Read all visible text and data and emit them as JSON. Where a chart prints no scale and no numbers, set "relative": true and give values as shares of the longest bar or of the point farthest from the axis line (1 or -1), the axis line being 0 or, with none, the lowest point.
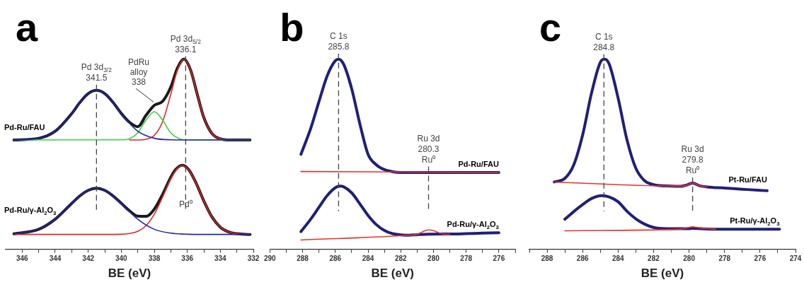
{
  "chart_data": [
    {
      "type": "line",
      "title": "a",
      "xlabel": "BE (eV)",
      "relative": true,
      "grid": false,
      "marker": "none",
      "xlim": [
        347,
        332
      ],
      "xticks": [
        346,
        {
          "value": 345,
          "label": null
        },
        344,
        {
          "value": 343,
          "label": null
        },
        342,
        {
          "value": 341,
          "label": null
        },
        340,
        {
          "value": 339,
          "label": null
        },
        338,
        {
          "value": 337,
          "label": null
        },
        336,
        {
          "value": 335,
          "label": null
        },
        334,
        {
          "value": 333,
          "label": null
        },
        332
      ],
      "ref_lines": [
        {
          "axis": "x",
          "value": 341.5,
          "label": "Pd 3d$_{3/2}$\n341.5"
        },
        {
          "axis": "x",
          "value": 336.1,
          "label": "Pd 3d$_{5/2}$\n336.1"
        }
      ],
      "annotations": [
        {
          "text": "PdRu\nalloy\n338",
          "x": 338,
          "y": 0.76
        },
        {
          "text": "Pd⁰",
          "x": 336.1,
          "y": 0.22
        }
      ],
      "series": [
        {
          "name": "Pd-Ru/FAU",
          "color": "#1a1a1a",
          "x": [
            346.5,
            345,
            344,
            343,
            342.5,
            342,
            341.5,
            341,
            340.5,
            340,
            339.5,
            339,
            338.5,
            338,
            337.5,
            337,
            336.6,
            336.2,
            335.8,
            335.4,
            335,
            334.5,
            334,
            333.5,
            332.2
          ],
          "values": [
            0.575,
            0.584,
            0.621,
            0.714,
            0.773,
            0.819,
            0.836,
            0.819,
            0.773,
            0.715,
            0.668,
            0.645,
            0.705,
            0.757,
            0.778,
            0.854,
            0.953,
            1.0,
            0.943,
            0.816,
            0.693,
            0.608,
            0.581,
            0.575,
            0.575
          ]
        },
        {
          "color": "#2323b0",
          "x": [
            346.5,
            345,
            344,
            343,
            342.5,
            342,
            341.5,
            341,
            340.5,
            340,
            339,
            338,
            337,
            336,
            332.2
          ],
          "values": [
            0.575,
            0.584,
            0.621,
            0.714,
            0.773,
            0.819,
            0.836,
            0.819,
            0.773,
            0.714,
            0.621,
            0.584,
            0.576,
            0.575,
            0.575
          ]
        },
        {
          "color": "#3ccf3c",
          "x": [
            346.5,
            340,
            339.5,
            339,
            338.5,
            338,
            337.5,
            337,
            336.5,
            336,
            332.2
          ],
          "values": [
            0.575,
            0.576,
            0.582,
            0.612,
            0.68,
            0.724,
            0.68,
            0.612,
            0.582,
            0.576,
            0.575
          ]
        },
        {
          "color": "#e02424",
          "x": [
            339.5,
            339,
            338.5,
            338,
            337.5,
            337,
            336.6,
            336.2,
            335.8,
            335.4,
            335,
            334.5,
            334,
            333.5,
            332.2
          ],
          "values": [
            0.575,
            0.575,
            0.579,
            0.599,
            0.67,
            0.816,
            0.943,
            0.998,
            0.943,
            0.816,
            0.693,
            0.608,
            0.581,
            0.575,
            0.575
          ]
        },
        {
          "name": "Pd-Ru/γ-Al$_{2}$O$_{3}$",
          "color": "#1a1a1a",
          "x": [
            346.5,
            345,
            344,
            343,
            342.5,
            342,
            341.5,
            341,
            340.5,
            340,
            339.5,
            339,
            338.5,
            338,
            337.5,
            337,
            336.7,
            336.3,
            335.9,
            335.5,
            335,
            334.5,
            334,
            333.5,
            333,
            332.2
          ],
          "values": [
            0.081,
            0.105,
            0.158,
            0.241,
            0.281,
            0.31,
            0.321,
            0.31,
            0.281,
            0.242,
            0.202,
            0.174,
            0.173,
            0.211,
            0.288,
            0.379,
            0.42,
            0.442,
            0.417,
            0.354,
            0.254,
            0.169,
            0.116,
            0.091,
            0.082,
            0.078
          ]
        },
        {
          "color": "#2323b0",
          "x": [
            346.5,
            345,
            344,
            343,
            342.5,
            342,
            341.5,
            341,
            340.5,
            340,
            339,
            338,
            337,
            336,
            335,
            332.2
          ],
          "values": [
            0.081,
            0.105,
            0.158,
            0.241,
            0.281,
            0.31,
            0.321,
            0.31,
            0.281,
            0.241,
            0.158,
            0.105,
            0.085,
            0.079,
            0.078,
            0.078
          ]
        },
        {
          "color": "#e02424",
          "x": [
            346.5,
            341,
            340,
            339.5,
            339,
            338.5,
            338,
            337.5,
            337,
            336.7,
            336.3,
            335.9,
            335.5,
            335,
            334.5,
            334,
            333.5,
            333,
            332.2
          ],
          "values": [
            0.078,
            0.078,
            0.079,
            0.083,
            0.094,
            0.124,
            0.184,
            0.274,
            0.372,
            0.416,
            0.44,
            0.416,
            0.354,
            0.254,
            0.169,
            0.116,
            0.091,
            0.082,
            0.078
          ]
        }
      ]
    },
    {
      "type": "line",
      "title": "b",
      "xlabel": "BE (eV)",
      "relative": true,
      "grid": false,
      "marker": "none",
      "xlim": [
        290,
        275
      ],
      "xticks": [
        290,
        {
          "value": 289,
          "label": null
        },
        288,
        {
          "value": 287,
          "label": null
        },
        286,
        {
          "value": 285,
          "label": null
        },
        284,
        {
          "value": 283,
          "label": null
        },
        282,
        {
          "value": 281,
          "label": null
        },
        280,
        {
          "value": 279,
          "label": null
        },
        278,
        {
          "value": 277,
          "label": null
        },
        276,
        {
          "value": 275,
          "label": null
        }
      ],
      "ref_lines": [
        {
          "axis": "x",
          "value": 285.8,
          "label": "C 1s\n285.8"
        },
        {
          "axis": "x",
          "value": 280.3,
          "label": "Ru 3d\n280.3\nRu⁰"
        }
      ],
      "series": [
        {
          "name": "Pd-Ru/FAU",
          "color": "#1f1f7a",
          "x": [
            288.1,
            287.5,
            287,
            286.5,
            286,
            285.8,
            285.5,
            285,
            284.5,
            284,
            283.5,
            283,
            282.5,
            282,
            280,
            278,
            276
          ],
          "values": [
            0.5,
            0.637,
            0.777,
            0.912,
            0.992,
            1.0,
            0.975,
            0.845,
            0.66,
            0.5,
            0.445,
            0.419,
            0.408,
            0.404,
            0.404,
            0.404,
            0.404
          ]
        },
        {
          "color": "#e8322a",
          "x": [
            288.1,
            276
          ],
          "values": [
            0.409,
            0.404
          ]
        },
        {
          "name": "Pd-Ru/γ-Al$_{2}$O$_{3}$",
          "color": "#1f1f7a",
          "x": [
            288.1,
            287.5,
            287,
            286.5,
            286,
            285.7,
            285.5,
            285,
            284.5,
            284,
            283.5,
            283,
            282.5,
            282,
            281.5,
            281,
            280.3,
            279.5,
            279,
            278,
            277,
            276
          ],
          "values": [
            0.093,
            0.159,
            0.221,
            0.282,
            0.324,
            0.332,
            0.329,
            0.297,
            0.239,
            0.178,
            0.13,
            0.099,
            0.082,
            0.076,
            0.074,
            0.077,
            0.079,
            0.08,
            0.08,
            0.082,
            0.085,
            0.087
          ]
        },
        {
          "color": "#e8322a",
          "x": [
            288.1,
            281.5,
            281,
            280.8,
            280.5,
            280.3,
            280,
            279.7,
            279.4,
            279
          ],
          "values": [
            0.049,
            0.074,
            0.078,
            0.086,
            0.098,
            0.102,
            0.098,
            0.088,
            0.08,
            0.079
          ]
        }
      ]
    },
    {
      "type": "line",
      "title": "c",
      "xlabel": "BE (eV)",
      "relative": true,
      "grid": false,
      "marker": "none",
      "xlim": [
        289,
        274
      ],
      "xticks": [
        {
          "value": 289,
          "label": null
        },
        288,
        {
          "value": 287,
          "label": null
        },
        286,
        {
          "value": 285,
          "label": null
        },
        284,
        {
          "value": 283,
          "label": null
        },
        282,
        {
          "value": 281,
          "label": null
        },
        280,
        {
          "value": 279,
          "label": null
        },
        278,
        {
          "value": 277,
          "label": null
        },
        276,
        {
          "value": 275,
          "label": null
        },
        274
      ],
      "ref_lines": [
        {
          "axis": "x",
          "value": 284.8,
          "label": "C 1s\n284.8"
        },
        {
          "axis": "x",
          "value": 279.8,
          "label": "Ru 3d\n279.8\nRu⁰"
        }
      ],
      "series": [
        {
          "name": "Pt-Ru/FAU",
          "color": "#1f1f7a",
          "x": [
            287.6,
            287,
            286.5,
            286,
            285.5,
            285,
            284.75,
            284.5,
            284,
            283.5,
            283,
            282.5,
            282,
            281,
            280.5,
            280.2,
            279.8,
            279.4,
            279,
            278,
            277,
            276,
            275.6
          ],
          "values": [
            0.354,
            0.373,
            0.444,
            0.601,
            0.821,
            0.984,
            1.0,
            0.974,
            0.796,
            0.576,
            0.426,
            0.36,
            0.34,
            0.332,
            0.331,
            0.336,
            0.348,
            0.334,
            0.328,
            0.322,
            0.316,
            0.31,
            0.308
          ]
        },
        {
          "color": "#e8322a",
          "x": [
            287.6,
            281,
            280.3,
            279.8,
            279.3,
            279
          ],
          "values": [
            0.354,
            0.333,
            0.333,
            0.347,
            0.331,
            0.328
          ]
        },
        {
          "name": "Pt-Ru/γ-Al$_{2}$O$_{3}$",
          "color": "#1f1f7a",
          "x": [
            287,
            286.5,
            286,
            285.5,
            284.9,
            284.5,
            284,
            283.5,
            283,
            282.5,
            282,
            281.5,
            281,
            280,
            279.8,
            279,
            278,
            277,
            276,
            274.9
          ],
          "values": [
            0.158,
            0.198,
            0.235,
            0.267,
            0.282,
            0.275,
            0.25,
            0.2,
            0.16,
            0.132,
            0.115,
            0.109,
            0.108,
            0.108,
            0.11,
            0.106,
            0.105,
            0.105,
            0.105,
            0.105
          ]
        },
        {
          "color": "#e8322a",
          "x": [
            287,
            281,
            280.5,
            280,
            279.8,
            279.5,
            279,
            278.5
          ],
          "values": [
            0.097,
            0.104,
            0.106,
            0.115,
            0.118,
            0.114,
            0.108,
            0.105
          ]
        }
      ]
    }
  ]
}
